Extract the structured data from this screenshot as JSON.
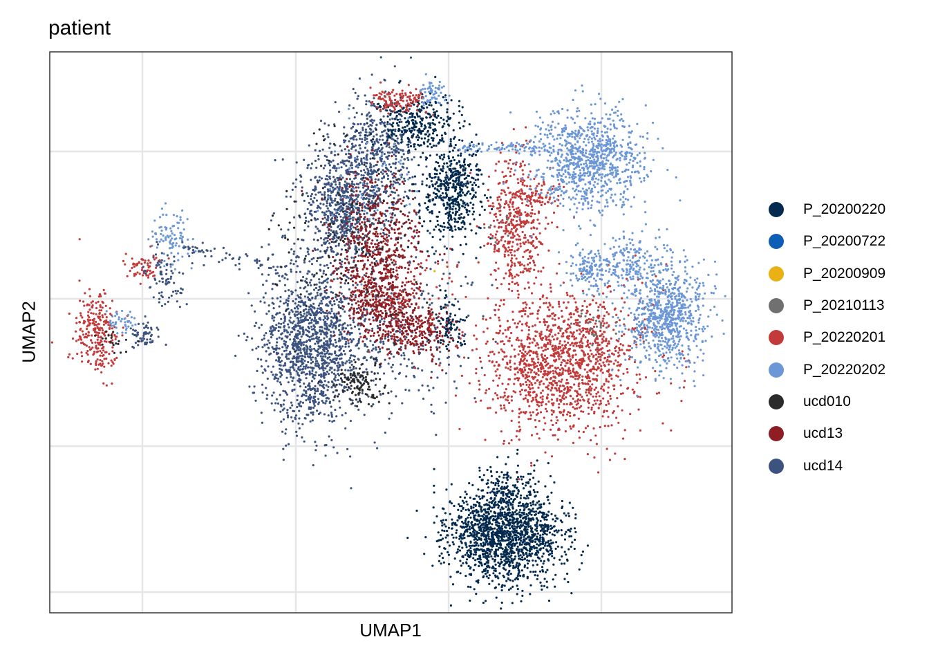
{
  "chart_data": {
    "type": "scatter",
    "title": "patient",
    "xlabel": "UMAP1",
    "ylabel": "UMAP2",
    "grid": true,
    "tick_labels": false,
    "legend_position": "right",
    "series": [
      {
        "name": "P_20200220",
        "color": "#042A4F"
      },
      {
        "name": "P_20200722",
        "color": "#0E5EB5"
      },
      {
        "name": "P_20200909",
        "color": "#E9B115"
      },
      {
        "name": "P_20210113",
        "color": "#707070"
      },
      {
        "name": "P_20220201",
        "color": "#C23A3A"
      },
      {
        "name": "P_20220202",
        "color": "#6B97D6"
      },
      {
        "name": "ucd010",
        "color": "#2B2B2B"
      },
      {
        "name": "ucd13",
        "color": "#8E1E23"
      },
      {
        "name": "ucd14",
        "color": "#3C5380"
      }
    ]
  }
}
